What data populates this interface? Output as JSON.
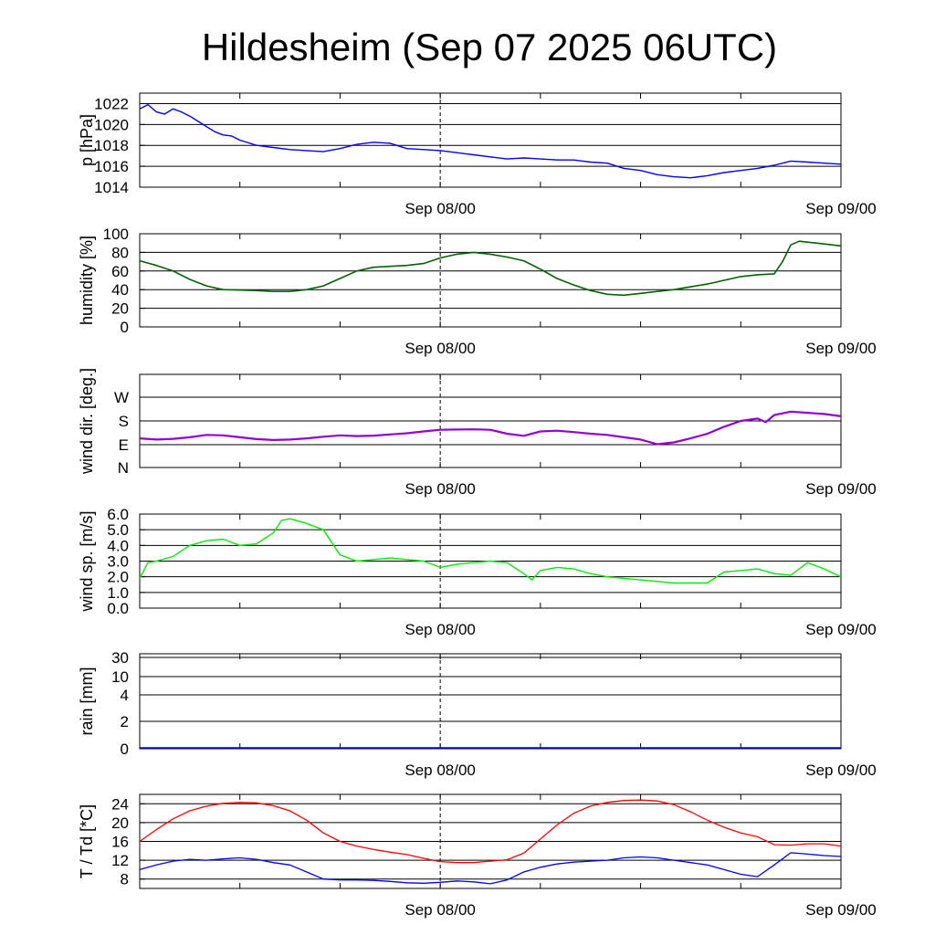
{
  "title": "Hildesheim (Sep 07 2025 06UTC)",
  "colors": {
    "pressure": "#0000ff",
    "humidity": "#006400",
    "wind_dir": "#9400d3",
    "wind_speed": "#00ee00",
    "rain": "#0000ff",
    "temperature": "#ff0000",
    "dewpoint": "#0000ff"
  },
  "chart_data": [
    {
      "type": "line",
      "ylabel": "p [hPa]",
      "x_ticks": [
        "Sep 08/00",
        "Sep 09/00"
      ],
      "ylim": [
        1014,
        1023
      ],
      "y_ticks": [
        "1022",
        "1020",
        "1018",
        "1016",
        "1014"
      ],
      "grid": true,
      "series": [
        {
          "x": [
            0,
            0.5,
            1,
            1.5,
            2,
            2.5,
            3,
            3.5,
            4,
            4.5,
            5,
            5.5,
            6,
            7,
            8,
            9,
            10,
            11,
            12,
            13,
            14,
            15,
            16,
            17,
            18,
            19,
            20,
            21,
            22,
            23,
            24,
            25,
            26,
            27,
            28,
            29,
            30,
            31,
            32,
            33,
            34,
            35,
            36,
            37,
            38,
            39,
            40,
            41,
            42
          ],
          "values": [
            1021.5,
            1021.9,
            1021.2,
            1021.0,
            1021.5,
            1021.2,
            1020.8,
            1020.3,
            1019.8,
            1019.3,
            1019.0,
            1018.9,
            1018.5,
            1018.0,
            1017.8,
            1017.6,
            1017.5,
            1017.4,
            1017.7,
            1018.1,
            1018.3,
            1018.2,
            1017.7,
            1017.6,
            1017.5,
            1017.3,
            1017.1,
            1016.9,
            1016.7,
            1016.8,
            1016.7,
            1016.6,
            1016.6,
            1016.4,
            1016.3,
            1015.8,
            1015.6,
            1015.2,
            1015.0,
            1014.9,
            1015.1,
            1015.4,
            1015.6,
            1015.8,
            1016.1,
            1016.5,
            1016.4,
            1016.3,
            1016.2
          ]
        }
      ]
    },
    {
      "type": "line",
      "ylabel": "humidity [%]",
      "x_ticks": [
        "Sep 08/00",
        "Sep 09/00"
      ],
      "ylim": [
        0,
        100
      ],
      "y_ticks": [
        "100",
        "80",
        "60",
        "40",
        "20",
        "0"
      ],
      "grid": true,
      "series": [
        {
          "x": [
            0,
            1,
            2,
            3,
            4,
            5,
            6,
            7,
            8,
            9,
            10,
            11,
            12,
            13,
            14,
            15,
            16,
            17,
            18,
            19,
            20,
            21,
            22,
            23,
            24,
            25,
            26,
            27,
            28,
            29,
            30,
            31,
            32,
            33,
            34,
            35,
            36,
            37,
            38,
            38.5,
            39,
            39.5,
            40,
            41,
            42
          ],
          "values": [
            71,
            66,
            60,
            51,
            44,
            40,
            39.5,
            39,
            38,
            38,
            40,
            44,
            52,
            60,
            64,
            65,
            66,
            68,
            74,
            78,
            80,
            78,
            75,
            71,
            62,
            52,
            45,
            39,
            35,
            34,
            36,
            38,
            40,
            43,
            46,
            50,
            54,
            56,
            57,
            70,
            88,
            92,
            91,
            89,
            87
          ]
        }
      ]
    },
    {
      "type": "line",
      "ylabel": "wind dir. [deg.]",
      "x_ticks": [
        "Sep 08/00",
        "Sep 09/00"
      ],
      "ylim": [
        0,
        400
      ],
      "y_ticks": [
        "W",
        "S",
        "E",
        "N"
      ],
      "grid": true,
      "series": [
        {
          "x": [
            0,
            1,
            2,
            3,
            4,
            5,
            6,
            7,
            8,
            9,
            10,
            11,
            12,
            13,
            14,
            15,
            16,
            17,
            18,
            19,
            20,
            21,
            22,
            23,
            24,
            25,
            26,
            27,
            28,
            29,
            30,
            31,
            32,
            33,
            34,
            35,
            36,
            37,
            37.5,
            38,
            39,
            40,
            41,
            42
          ],
          "values": [
            125,
            120,
            123,
            130,
            140,
            138,
            130,
            122,
            118,
            120,
            125,
            132,
            138,
            135,
            137,
            142,
            147,
            155,
            162,
            163,
            164,
            162,
            145,
            136,
            155,
            158,
            152,
            145,
            140,
            130,
            120,
            100,
            108,
            125,
            145,
            175,
            200,
            210,
            195,
            225,
            240,
            235,
            230,
            220
          ]
        }
      ]
    },
    {
      "type": "line",
      "ylabel": "wind sp. [m/s]",
      "x_ticks": [
        "Sep 08/00",
        "Sep 09/00"
      ],
      "ylim": [
        0,
        6
      ],
      "y_ticks": [
        "6.0",
        "5.0",
        "4.0",
        "3.0",
        "2.0",
        "1.0",
        "0.0"
      ],
      "grid": true,
      "series": [
        {
          "x": [
            0,
            0.5,
            1,
            2,
            3,
            4,
            5,
            6,
            7,
            8,
            8.5,
            9,
            10,
            11,
            12,
            13,
            14,
            15,
            16,
            17,
            18,
            19,
            20,
            21,
            22,
            23,
            23.5,
            24,
            25,
            26,
            27,
            28,
            29,
            30,
            31,
            32,
            33,
            34,
            35,
            36,
            37,
            38,
            39,
            40,
            41,
            42
          ],
          "values": [
            1.9,
            2.9,
            3.0,
            3.3,
            4.0,
            4.3,
            4.4,
            4.0,
            4.1,
            4.8,
            5.6,
            5.7,
            5.4,
            5.0,
            3.4,
            3.0,
            3.1,
            3.2,
            3.1,
            3.0,
            2.6,
            2.8,
            2.9,
            3.0,
            2.9,
            2.2,
            1.8,
            2.4,
            2.6,
            2.5,
            2.2,
            2.0,
            1.9,
            1.8,
            1.7,
            1.6,
            1.6,
            1.6,
            2.3,
            2.4,
            2.5,
            2.2,
            2.1,
            2.9,
            2.5,
            2.0
          ]
        }
      ]
    },
    {
      "type": "line",
      "ylabel": "rain [mm]",
      "x_ticks": [
        "Sep 08/00",
        "Sep 09/00"
      ],
      "y_ticks": [
        "30",
        "10",
        "4",
        "2",
        "0"
      ],
      "grid": true,
      "series": [
        {
          "x": [
            0,
            42
          ],
          "values": [
            0,
            0
          ]
        }
      ]
    },
    {
      "type": "line",
      "ylabel": "T / Td [*C]",
      "x_ticks": [
        "Sep 08/00",
        "Sep 09/00"
      ],
      "ylim": [
        6,
        26
      ],
      "y_ticks": [
        "24",
        "20",
        "16",
        "12",
        "8"
      ],
      "grid": true,
      "series": [
        {
          "x": [
            0,
            1,
            2,
            3,
            4,
            5,
            6,
            7,
            8,
            9,
            10,
            11,
            12,
            13,
            14,
            15,
            16,
            17,
            18,
            19,
            20,
            21,
            22,
            23,
            24,
            25,
            26,
            27,
            28,
            29,
            30,
            31,
            32,
            33,
            34,
            35,
            36,
            37,
            38,
            39,
            40,
            41,
            42
          ],
          "values": [
            16.0,
            18.5,
            20.8,
            22.5,
            23.5,
            24.1,
            24.3,
            24.2,
            23.6,
            22.5,
            20.5,
            17.8,
            16.0,
            15.0,
            14.3,
            13.7,
            13.2,
            12.4,
            11.7,
            11.5,
            11.5,
            11.8,
            12.1,
            13.5,
            16.5,
            19.5,
            22.0,
            23.5,
            24.3,
            24.7,
            24.8,
            24.6,
            23.8,
            22.3,
            20.5,
            19.0,
            17.8,
            17.0,
            15.3,
            15.2,
            15.5,
            15.5,
            15.0
          ]
        },
        {
          "x": [
            0,
            1,
            2,
            3,
            4,
            5,
            6,
            7,
            8,
            9,
            10,
            11,
            12,
            13,
            14,
            15,
            16,
            17,
            18,
            19,
            20,
            21,
            22,
            23,
            24,
            25,
            26,
            27,
            28,
            29,
            30,
            31,
            32,
            33,
            34,
            35,
            36,
            37,
            38,
            39,
            40,
            41,
            42
          ],
          "values": [
            10.0,
            11.0,
            11.8,
            12.2,
            12.0,
            12.3,
            12.5,
            12.2,
            11.5,
            11.0,
            9.5,
            8.0,
            7.8,
            7.8,
            7.7,
            7.5,
            7.2,
            7.1,
            7.3,
            7.6,
            7.4,
            7.0,
            7.8,
            9.5,
            10.5,
            11.2,
            11.6,
            11.8,
            12.0,
            12.5,
            12.7,
            12.5,
            12.0,
            11.5,
            11.0,
            10.0,
            9.0,
            8.5,
            11.0,
            13.6,
            13.3,
            13.0,
            12.8
          ]
        }
      ]
    }
  ]
}
